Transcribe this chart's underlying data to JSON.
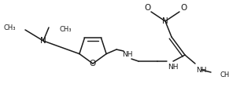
{
  "bg_color": "#ffffff",
  "line_color": "#1a1a1a",
  "lw": 1.1,
  "fs": 6.5,
  "xlim": [
    0,
    291
  ],
  "ylim": [
    0,
    135
  ]
}
